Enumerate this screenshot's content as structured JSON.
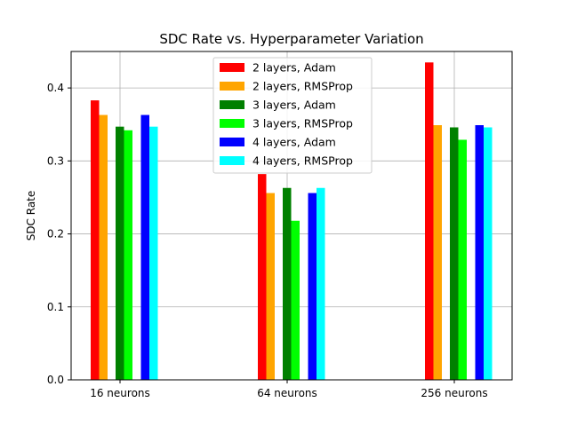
{
  "chart_data": {
    "type": "bar",
    "title": "SDC Rate vs. Hyperparameter Variation",
    "xlabel": "",
    "ylabel": "SDC Rate",
    "ylim": [
      0,
      0.45
    ],
    "yticks": [
      0.0,
      0.1,
      0.2,
      0.3,
      0.4
    ],
    "ytick_labels": [
      "0.0",
      "0.1",
      "0.2",
      "0.3",
      "0.4"
    ],
    "categories": [
      "16 neurons",
      "64 neurons",
      "256 neurons"
    ],
    "grid": true,
    "legend_position": "top-center",
    "series": [
      {
        "name": "2 layers, Adam",
        "color": "#ff0000",
        "values": [
          0.383,
          0.282,
          0.435
        ]
      },
      {
        "name": "2 layers, RMSProp",
        "color": "#ffa500",
        "values": [
          0.363,
          0.256,
          0.349
        ]
      },
      {
        "name": "3 layers, Adam",
        "color": "#008000",
        "values": [
          0.347,
          0.263,
          0.346
        ]
      },
      {
        "name": "3 layers, RMSProp",
        "color": "#00ff00",
        "values": [
          0.342,
          0.218,
          0.329
        ]
      },
      {
        "name": "4 layers, Adam",
        "color": "#0000ff",
        "values": [
          0.363,
          0.256,
          0.349
        ]
      },
      {
        "name": "4 layers, RMSProp",
        "color": "#00ffff",
        "values": [
          0.347,
          0.263,
          0.346
        ]
      }
    ]
  }
}
